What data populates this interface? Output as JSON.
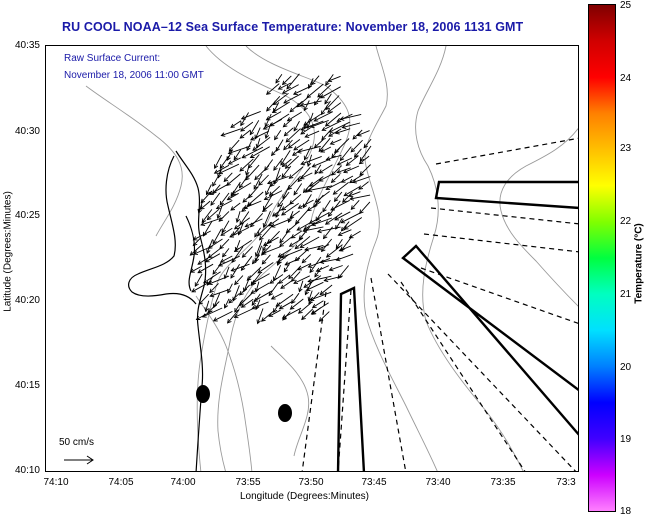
{
  "title": "RU COOL  NOAA–12  Sea Surface Temperature:  November 18, 2006 1131 GMT",
  "overlay": {
    "line1": "Raw Surface Current:",
    "line2": "November 18, 2006 11:00 GMT"
  },
  "axes": {
    "xlabel": "Longitude (Degrees:Minutes)",
    "ylabel": "Latitude (Degrees:Minutes)",
    "xticks": [
      "74:10",
      "74:05",
      "74:00",
      "73:55",
      "73:50",
      "73:45",
      "73:40",
      "73:35",
      "73:3"
    ],
    "yticks": [
      "40:35",
      "40:30",
      "40:25",
      "40:20",
      "40:15",
      "40:10"
    ]
  },
  "colorbar": {
    "label": "Temperature (°C)",
    "ticks": [
      "25",
      "24",
      "23",
      "22",
      "21",
      "20",
      "19",
      "18"
    ],
    "min": 18,
    "max": 25,
    "colors": [
      "#ff80ff",
      "#cc00ff",
      "#4000ff",
      "#0000ff",
      "#0080ff",
      "#00e0ff",
      "#00ffc0",
      "#00ff40",
      "#80ff00",
      "#ffff00",
      "#ffc000",
      "#ff8000",
      "#ff0000",
      "#d00000",
      "#800000"
    ]
  },
  "scale": {
    "label": "50 cm/s"
  },
  "chart_data": {
    "type": "map",
    "lon_range": [
      "74:10",
      "73:3"
    ],
    "lat_range": [
      "40:10",
      "40:35"
    ],
    "vector_field": "surface current arrows, predominantly directed toward the south-west",
    "markers": 2
  },
  "colors": {
    "title": "#1a1aa8",
    "coastline": "#000000",
    "bathymetry": "#888888"
  }
}
